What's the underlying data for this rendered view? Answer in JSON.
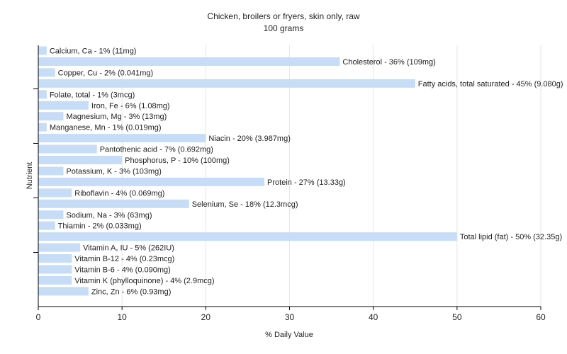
{
  "chart_data": {
    "type": "bar",
    "orientation": "horizontal",
    "title": "Chicken, broilers or fryers, skin only, raw",
    "subtitle": "100 grams",
    "xlabel": "% Daily Value",
    "ylabel": "Nutrient",
    "xlim": [
      0,
      60
    ],
    "xticks": [
      "0",
      "10",
      "20",
      "30",
      "40",
      "50",
      "60"
    ],
    "grid": true,
    "bar_color": "#c6dcf7",
    "categories": [
      "Calcium, Ca",
      "Cholesterol",
      "Copper, Cu",
      "Fatty acids, total saturated",
      "Folate, total",
      "Iron, Fe",
      "Magnesium, Mg",
      "Manganese, Mn",
      "Niacin",
      "Pantothenic acid",
      "Phosphorus, P",
      "Potassium, K",
      "Protein",
      "Riboflavin",
      "Selenium, Se",
      "Sodium, Na",
      "Thiamin",
      "Total lipid (fat)",
      "Vitamin A, IU",
      "Vitamin B-12",
      "Vitamin B-6",
      "Vitamin K (phylloquinone)",
      "Zinc, Zn"
    ],
    "values": [
      1,
      36,
      2,
      45,
      1,
      6,
      3,
      1,
      20,
      7,
      10,
      3,
      27,
      4,
      18,
      3,
      2,
      50,
      5,
      4,
      4,
      4,
      6
    ],
    "labels": [
      "Calcium, Ca - 1% (11mg)",
      "Cholesterol - 36% (109mg)",
      "Copper, Cu - 2% (0.041mg)",
      "Fatty acids, total saturated - 45% (9.080g)",
      "Folate, total - 1% (3mcg)",
      "Iron, Fe - 6% (1.08mg)",
      "Magnesium, Mg - 3% (13mg)",
      "Manganese, Mn - 1% (0.019mg)",
      "Niacin - 20% (3.987mg)",
      "Pantothenic acid - 7% (0.692mg)",
      "Phosphorus, P - 10% (100mg)",
      "Potassium, K - 3% (103mg)",
      "Protein - 27% (13.33g)",
      "Riboflavin - 4% (0.069mg)",
      "Selenium, Se - 18% (12.3mcg)",
      "Sodium, Na - 3% (63mg)",
      "Thiamin - 2% (0.033mg)",
      "Total lipid (fat) - 50% (32.35g)",
      "Vitamin A, IU - 5% (262IU)",
      "Vitamin B-12 - 4% (0.23mcg)",
      "Vitamin B-6 - 4% (0.090mg)",
      "Vitamin K (phylloquinone) - 4% (2.9mcg)",
      "Zinc, Zn - 6% (0.93mg)"
    ]
  }
}
